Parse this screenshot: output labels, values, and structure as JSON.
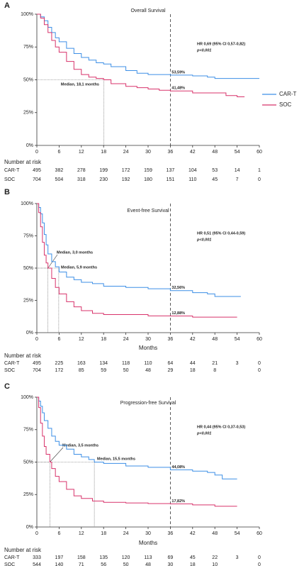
{
  "chart_data": [
    {
      "type": "line",
      "step": true,
      "panel": "A",
      "title": "Overall Survival",
      "legend": "right",
      "series": [
        {
          "name": "CAR-T",
          "color": "#3d8fe6",
          "x": [
            0,
            1,
            2,
            3,
            4,
            5,
            6,
            8,
            10,
            12,
            14,
            16,
            18,
            20,
            24,
            27,
            30,
            33,
            36,
            42,
            46,
            48,
            54,
            60
          ],
          "values": [
            100,
            98,
            95,
            90,
            86,
            82,
            79,
            74,
            70,
            67,
            65,
            63,
            62,
            60,
            57,
            55,
            54,
            54,
            53.59,
            53,
            52,
            51,
            51,
            51
          ]
        },
        {
          "name": "SOC",
          "color": "#d8336b",
          "x": [
            0,
            1,
            2,
            3,
            4,
            5,
            6,
            8,
            10,
            12,
            14,
            16,
            18,
            20,
            24,
            27,
            30,
            33,
            36,
            42,
            48,
            51,
            54,
            56
          ],
          "values": [
            100,
            97,
            92,
            86,
            80,
            75,
            71,
            64,
            58,
            54,
            52,
            51,
            50,
            47,
            45,
            44,
            43,
            42,
            41.48,
            40,
            40,
            38,
            37,
            37
          ]
        }
      ],
      "xlim": [
        0,
        60
      ],
      "xticks": [
        0,
        6,
        12,
        18,
        24,
        30,
        36,
        42,
        48,
        54,
        60
      ],
      "ylim": [
        0,
        100
      ],
      "yticks": [
        {
          "value": 0,
          "label": "0%"
        },
        {
          "value": 25,
          "label": "25%"
        },
        {
          "value": 50,
          "label": "50%"
        },
        {
          "value": 75,
          "label": "75%"
        },
        {
          "value": 100,
          "label": "100%"
        }
      ],
      "vline": 36,
      "end_labels": [
        "53,59%",
        "41,48%"
      ],
      "medians": [
        18.1
      ],
      "median_labels": [
        "Median, 18,1 months"
      ],
      "hr": "HR 0,69 (95% CI 0,57-0,82)",
      "p": "p<0,001",
      "risk_table": {
        "title": "Number at risk",
        "rows": [
          {
            "name": "CAR-T",
            "values": [
              495,
              382,
              278,
              199,
              172,
              159,
              137,
              104,
              53,
              14,
              1
            ]
          },
          {
            "name": "SOC",
            "values": [
              704,
              504,
              318,
              230,
              192,
              180,
              151,
              110,
              45,
              7,
              0
            ]
          }
        ]
      }
    },
    {
      "type": "line",
      "step": true,
      "panel": "B",
      "title": "Event-free Survival",
      "xlabel": "Months",
      "series": [
        {
          "color": "#3d8fe6",
          "x": [
            0,
            0.5,
            1,
            1.5,
            2,
            2.5,
            3,
            4,
            5,
            6,
            8,
            10,
            12,
            15,
            18,
            24,
            30,
            36,
            42,
            46,
            48,
            50,
            55
          ],
          "values": [
            100,
            97,
            92,
            85,
            76,
            68,
            61,
            55,
            51,
            47,
            43,
            41,
            39,
            38,
            36,
            35,
            34,
            32.56,
            31,
            30,
            28,
            28,
            28
          ]
        },
        {
          "color": "#d8336b",
          "x": [
            0,
            0.5,
            1,
            1.5,
            2,
            2.5,
            3,
            4,
            5,
            6,
            8,
            10,
            12,
            15,
            18,
            24,
            30,
            36,
            42,
            48,
            54
          ],
          "values": [
            100,
            93,
            82,
            70,
            60,
            54,
            50,
            42,
            35,
            30,
            24,
            20,
            17,
            15,
            14,
            14,
            13,
            12.88,
            12,
            12,
            12
          ]
        }
      ],
      "xlim": [
        0,
        60
      ],
      "xticks": [
        0,
        6,
        12,
        18,
        24,
        30,
        36,
        42,
        48,
        54,
        60
      ],
      "ylim": [
        0,
        100
      ],
      "yticks": [
        {
          "value": 0,
          "label": "0%"
        },
        {
          "value": 25,
          "label": "25%"
        },
        {
          "value": 50,
          "label": "50%"
        },
        {
          "value": 75,
          "label": "75%"
        },
        {
          "value": 100,
          "label": "100%"
        }
      ],
      "vline": 36,
      "end_labels": [
        "32,56%",
        "12,88%"
      ],
      "medians": [
        3.0,
        5.9
      ],
      "median_labels": [
        "Median, 3,0 months",
        "Median, 5,9 months"
      ],
      "hr": "HR 0,51 (95% CI 0,44-0,59)",
      "p": "p<0,001",
      "risk_table": {
        "title": "Number at risk",
        "rows": [
          {
            "name": "CAR-T",
            "values": [
              495,
              225,
              163,
              134,
              118,
              110,
              64,
              44,
              21,
              3,
              0
            ]
          },
          {
            "name": "SOC",
            "values": [
              704,
              172,
              85,
              59,
              50,
              48,
              29,
              18,
              8,
              null,
              0
            ]
          }
        ]
      }
    },
    {
      "type": "line",
      "step": true,
      "panel": "C",
      "title": "Progression-free Survival",
      "xlabel": "Months",
      "series": [
        {
          "color": "#3d8fe6",
          "x": [
            0,
            0.5,
            1,
            1.5,
            2,
            3,
            4,
            5,
            6,
            8,
            10,
            12,
            14,
            15.5,
            18,
            24,
            30,
            36,
            42,
            46,
            48,
            50,
            54
          ],
          "values": [
            100,
            97,
            93,
            88,
            82,
            76,
            70,
            66,
            63,
            60,
            56,
            54,
            52,
            50,
            49,
            47,
            46,
            44.08,
            43,
            42,
            40,
            37,
            37
          ]
        },
        {
          "color": "#d8336b",
          "x": [
            0,
            0.5,
            1,
            1.5,
            2,
            2.5,
            3.5,
            4,
            5,
            6,
            8,
            10,
            12,
            15,
            18,
            24,
            30,
            36,
            42,
            48,
            54
          ],
          "values": [
            100,
            92,
            80,
            70,
            62,
            56,
            50,
            45,
            39,
            35,
            29,
            24,
            22,
            20,
            19,
            18.5,
            18,
            17.82,
            17,
            16,
            16
          ]
        }
      ],
      "xlim": [
        0,
        60
      ],
      "xticks": [
        0,
        6,
        12,
        18,
        24,
        30,
        36,
        42,
        48,
        54,
        60
      ],
      "ylim": [
        0,
        100
      ],
      "yticks": [
        {
          "value": 0,
          "label": "0%"
        },
        {
          "value": 25,
          "label": "25%"
        },
        {
          "value": 50,
          "label": "50%"
        },
        {
          "value": 75,
          "label": "75%"
        },
        {
          "value": 100,
          "label": "100%"
        }
      ],
      "vline": 36,
      "end_labels": [
        "44,08%",
        "17,82%"
      ],
      "medians": [
        3.5,
        15.5
      ],
      "median_labels": [
        "Median, 3,5 months",
        "Median, 15,5 months"
      ],
      "hr": "HR 0,44 (95% CI 0,37-0,53)",
      "p": "p<0,001",
      "risk_table": {
        "title": "Number at risk",
        "rows": [
          {
            "name": "CAR-T",
            "values": [
              333,
              197,
              158,
              135,
              120,
              113,
              69,
              45,
              22,
              3,
              0
            ]
          },
          {
            "name": "SOC",
            "values": [
              544,
              140,
              71,
              56,
              50,
              48,
              30,
              18,
              10,
              null,
              0
            ]
          }
        ]
      }
    }
  ]
}
